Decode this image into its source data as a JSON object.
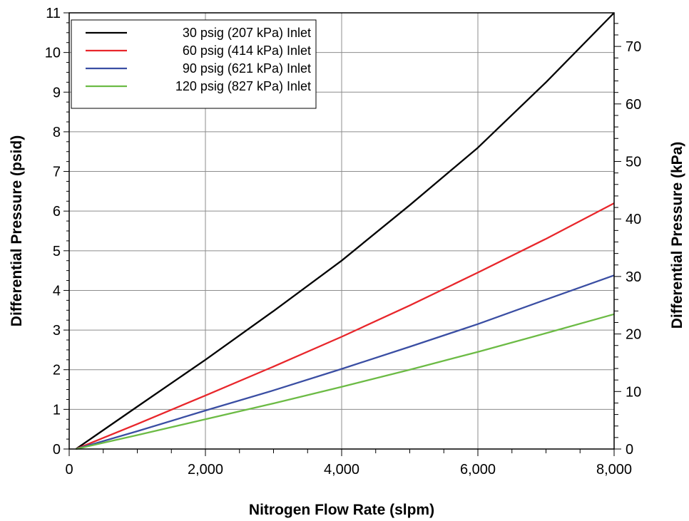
{
  "chart_data": {
    "type": "line",
    "xlabel": "Nitrogen Flow Rate (slpm)",
    "ylabel": "Differential Pressure (psid)",
    "y2label": "Differential Pressure (kPa)",
    "xlim": [
      0,
      8000
    ],
    "ylim": [
      0,
      11
    ],
    "y2lim": [
      0,
      75.84
    ],
    "x_ticks": [
      0,
      2000,
      4000,
      6000,
      8000
    ],
    "x_tick_labels": [
      "0",
      "2,000",
      "4,000",
      "6,000",
      "8,000"
    ],
    "y_ticks": [
      0,
      1,
      2,
      3,
      4,
      5,
      6,
      7,
      8,
      9,
      10,
      11
    ],
    "y_tick_labels": [
      "0",
      "1",
      "2",
      "3",
      "4",
      "5",
      "6",
      "7",
      "8",
      "9",
      "10",
      "11"
    ],
    "y2_ticks": [
      0,
      10,
      20,
      30,
      40,
      50,
      60,
      70
    ],
    "y2_tick_labels": [
      "0",
      "10",
      "20",
      "30",
      "40",
      "50",
      "60",
      "70"
    ],
    "grid": true,
    "legend_position": "top-left",
    "series": [
      {
        "name": "30 psig (207 kPa) Inlet",
        "color": "#000000",
        "x": [
          100,
          1000,
          2000,
          3000,
          4000,
          5000,
          6000,
          7000,
          8000
        ],
        "y": [
          0,
          1.07,
          2.25,
          3.48,
          4.75,
          6.15,
          7.6,
          9.25,
          11.0
        ]
      },
      {
        "name": "60 psig (414 kPa) Inlet",
        "color": "#e8262b",
        "x": [
          100,
          1000,
          2000,
          3000,
          4000,
          5000,
          6000,
          7000,
          8000
        ],
        "y": [
          0,
          0.63,
          1.35,
          2.08,
          2.83,
          3.62,
          4.45,
          5.3,
          6.2
        ]
      },
      {
        "name": "90 psig (621 kPa) Inlet",
        "color": "#3a4ea3",
        "x": [
          100,
          1000,
          2000,
          3000,
          4000,
          5000,
          6000,
          7000,
          8000
        ],
        "y": [
          0,
          0.45,
          0.97,
          1.48,
          2.02,
          2.58,
          3.15,
          3.77,
          4.38
        ]
      },
      {
        "name": "120 psig (827 kPa) Inlet",
        "color": "#6cbb45",
        "x": [
          100,
          1000,
          2000,
          3000,
          4000,
          5000,
          6000,
          7000,
          8000
        ],
        "y": [
          0,
          0.35,
          0.75,
          1.15,
          1.57,
          2.0,
          2.45,
          2.92,
          3.4
        ]
      }
    ]
  }
}
